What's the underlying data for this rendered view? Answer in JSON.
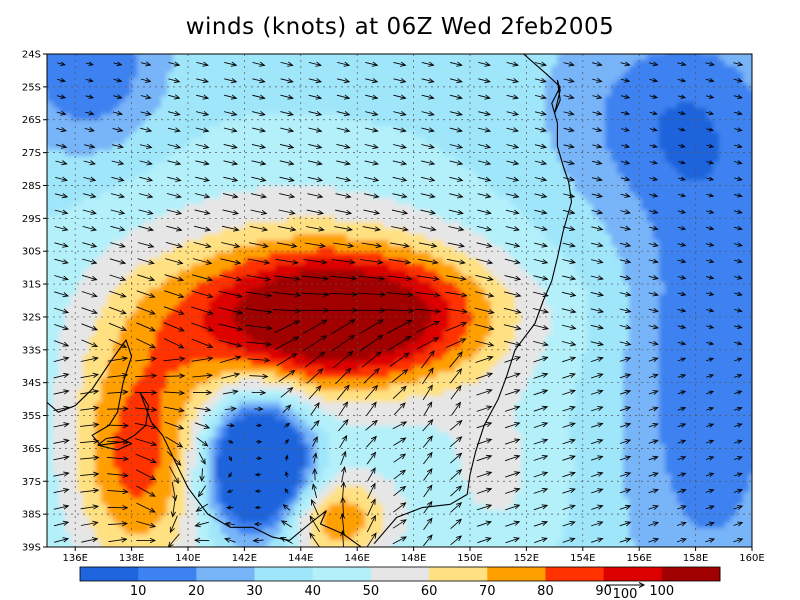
{
  "title": "winds (knots) at 06Z Wed 2feb2005",
  "map": {
    "lon_range": [
      135,
      160
    ],
    "lat_range": [
      -39,
      -24
    ],
    "lon_ticks": [
      "136E",
      "138E",
      "140E",
      "142E",
      "144E",
      "146E",
      "148E",
      "150E",
      "152E",
      "154E",
      "156E",
      "158E",
      "160E"
    ],
    "lat_ticks": [
      "24S",
      "25S",
      "26S",
      "27S",
      "28S",
      "29S",
      "30S",
      "31S",
      "32S",
      "33S",
      "34S",
      "35S",
      "36S",
      "37S",
      "38S",
      "39S"
    ],
    "grid": "dotted",
    "wind_field": {
      "type": "filled-contour + vectors",
      "jet_max_center_lon": 145.5,
      "jet_max_center_lat": -32,
      "calm_center_lon": 142.5,
      "calm_center_lat": -36.5
    }
  },
  "colorbar": {
    "levels": [
      "10",
      "20",
      "30",
      "40",
      "50",
      "60",
      "70",
      "80",
      "90",
      "100"
    ],
    "colors": [
      "#1e64dc",
      "#3c82f0",
      "#78b4f8",
      "#a0e6fa",
      "#b4f0fa",
      "#e6e6e6",
      "#ffe182",
      "#ffa000",
      "#ff3200",
      "#dc0000",
      "#a00000"
    ],
    "reference_vector_label": "100"
  },
  "vectors": {
    "color": "#000000"
  },
  "coastline_color": "#000000"
}
